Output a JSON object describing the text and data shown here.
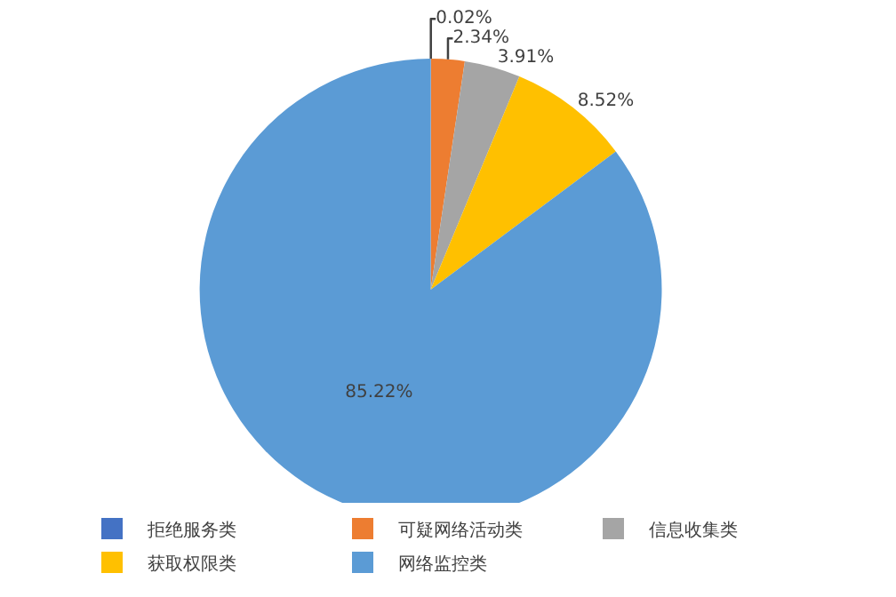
{
  "chart_data": {
    "type": "pie",
    "categories": [
      "拒绝服务类",
      "可疑网络活动类",
      "信息收集类",
      "获取权限类",
      "网络监控类"
    ],
    "values": [
      0.02,
      2.34,
      3.91,
      8.52,
      85.22
    ],
    "colors": [
      "#4472c4",
      "#ed7d31",
      "#a5a5a5",
      "#ffc000",
      "#5b9bd5"
    ],
    "value_labels": [
      "0.02%",
      "2.34%",
      "3.91%",
      "8.52%",
      "85.22%"
    ],
    "legend": "bottom"
  }
}
